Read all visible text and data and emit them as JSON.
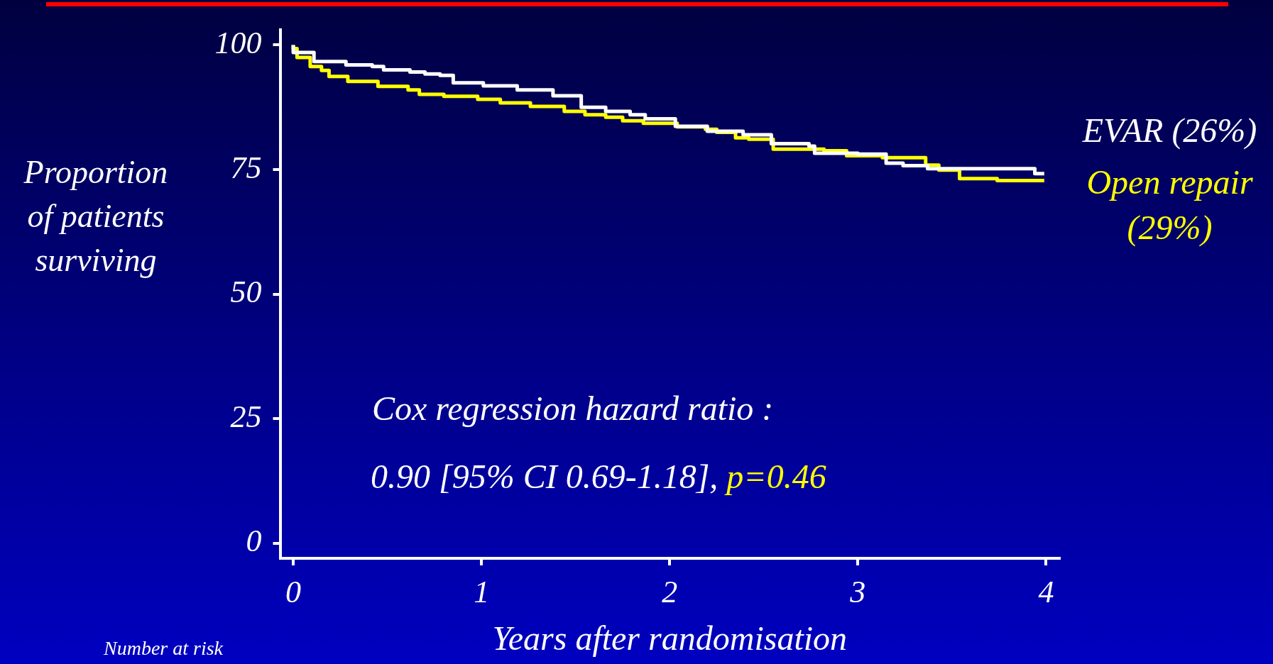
{
  "chart_data": {
    "type": "step",
    "xlabel": "Years after randomisation",
    "ylabel": "Proportion of patients surviving",
    "xlim": [
      -0.07,
      4.07
    ],
    "xticks": [
      0,
      1,
      2,
      3,
      4
    ],
    "ylim": [
      -3,
      103
    ],
    "yticks": [
      0,
      25,
      50,
      75,
      100
    ],
    "grid": false,
    "legend": false,
    "marker": "none",
    "line_style": "solid",
    "annotations": [
      "Cox regression hazard ratio :",
      "0.90 [95% CI 0.69-1.18],",
      "p=0.46",
      "Number at risk"
    ],
    "series": [
      {
        "name": "EVAR (26%)",
        "color": "#ffffff",
        "x": [
          0,
          0.11,
          0.28,
          0.42,
          0.48,
          0.62,
          0.7,
          0.78,
          0.85,
          1.01,
          1.19,
          1.38,
          1.53,
          1.66,
          1.79,
          1.87,
          2.03,
          2.2,
          2.39,
          2.54,
          2.74,
          2.77,
          3.0,
          3.15,
          3.24,
          3.37,
          3.94,
          3.98,
          3.99
        ],
        "values": [
          100,
          98.5,
          96.7,
          96,
          95.7,
          95,
          94.6,
          94.2,
          93.9,
          92.4,
          91.8,
          91,
          89.8,
          87.5,
          86.7,
          86,
          85.2,
          83.7,
          82.7,
          82,
          80.2,
          79.7,
          78.3,
          78.1,
          76.3,
          75.8,
          75.2,
          74.2,
          74.2
        ]
      },
      {
        "name": "Open repair (29%)",
        "color": "#ffff00",
        "x": [
          0,
          0.02,
          0.09,
          0.15,
          0.19,
          0.29,
          0.45,
          0.61,
          0.67,
          0.8,
          0.98,
          1.1,
          1.26,
          1.44,
          1.55,
          1.66,
          1.75,
          1.86,
          2.04,
          2.19,
          2.25,
          2.35,
          2.42,
          2.55,
          2.82,
          2.94,
          3.13,
          3.36,
          3.43,
          3.54,
          3.74,
          3.85,
          3.99
        ],
        "values": [
          100,
          99.3,
          97.5,
          95.7,
          94.9,
          93.7,
          92.7,
          91.7,
          91,
          90.1,
          89.7,
          89.1,
          88.4,
          87.7,
          86.7,
          86,
          85.5,
          84.8,
          84.3,
          83.6,
          83.1,
          82.5,
          81.4,
          81.1,
          79.1,
          78.8,
          77.8,
          77.4,
          75.9,
          74.9,
          73.2,
          72.8,
          72.8
        ]
      }
    ]
  }
}
